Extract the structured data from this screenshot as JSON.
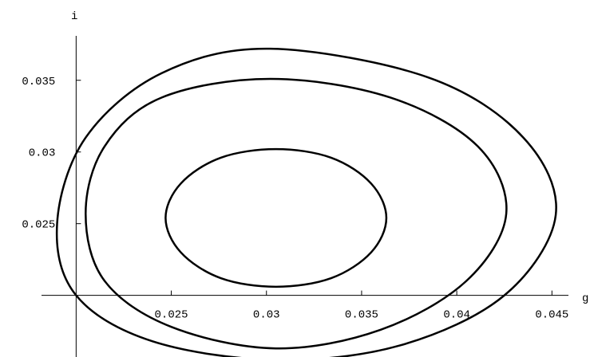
{
  "chart_data": {
    "type": "contour",
    "x_label": "g",
    "y_label": "i",
    "xlim": [
      0.016,
      0.047
    ],
    "ylim": [
      0.0157,
      0.0406
    ],
    "xticks": [
      0.025,
      0.03,
      0.035,
      0.04,
      0.045
    ],
    "yticks": [
      0.025,
      0.03,
      0.035
    ],
    "axes_origin": [
      0.02,
      0.02
    ],
    "series": [
      {
        "color": "#000000",
        "x": [
          0.0363,
          0.0355,
          0.0334,
          0.0305,
          0.0276,
          0.0255,
          0.0247,
          0.0255,
          0.0276,
          0.0305,
          0.0334,
          0.0355
        ],
        "values": [
          0.0254,
          0.0278,
          0.0296,
          0.0302,
          0.0296,
          0.0278,
          0.0254,
          0.023,
          0.0212,
          0.0206,
          0.0212,
          0.023
        ]
      },
      {
        "color": "#000000",
        "x": [
          0.0426,
          0.0411,
          0.0365,
          0.0302,
          0.0245,
          0.0215,
          0.0205,
          0.0215,
          0.025,
          0.0305,
          0.036,
          0.0405
        ],
        "values": [
          0.0257,
          0.0304,
          0.0338,
          0.0351,
          0.0338,
          0.0304,
          0.0257,
          0.021,
          0.0178,
          0.0163,
          0.0176,
          0.021
        ]
      },
      {
        "color": "#000000",
        "x": [
          0.0452,
          0.0435,
          0.0385,
          0.0302,
          0.0245,
          0.0205,
          0.019,
          0.02,
          0.024,
          0.0305,
          0.037,
          0.0425
        ],
        "values": [
          0.0256,
          0.031,
          0.0352,
          0.0372,
          0.0355,
          0.031,
          0.025,
          0.02,
          0.0168,
          0.0155,
          0.0165,
          0.02
        ]
      }
    ]
  }
}
